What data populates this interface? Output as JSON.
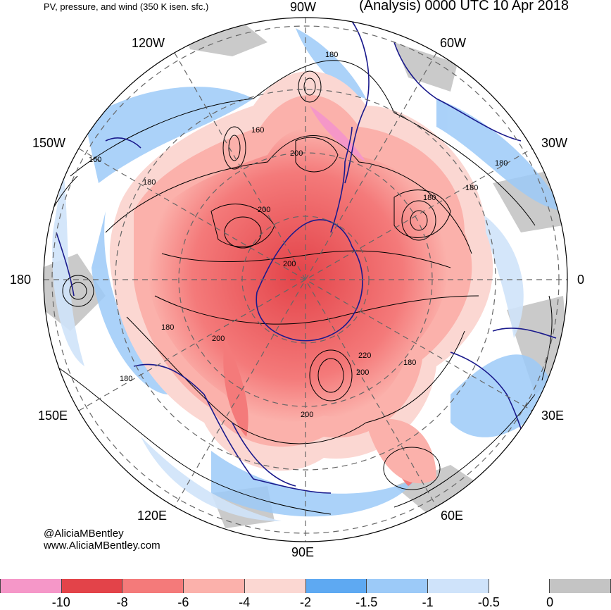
{
  "header": {
    "subtitle": "PV, pressure, and wind (350 K isen. sfc.)",
    "title": "(Analysis) 0000 UTC 10 Apr 2018"
  },
  "longitude_labels": {
    "n90w": "90W",
    "n120w": "120W",
    "n60w": "60W",
    "n150w": "150W",
    "n30w": "30W",
    "n180": "180",
    "n0": "0",
    "n150e": "150E",
    "n30e": "30E",
    "n120e": "120E",
    "n60e": "60E",
    "n90e": "90E"
  },
  "contour_labels": [
    "180",
    "160",
    "200",
    "160",
    "180",
    "180",
    "180",
    "180",
    "200",
    "200",
    "180",
    "200",
    "220",
    "200",
    "180",
    "180",
    "200"
  ],
  "credit": {
    "handle": "@AliciaMBentley",
    "site": "www.AliciaMBentley.com"
  },
  "colorbar": {
    "colors": [
      "#f597c8",
      "#e34349",
      "#f47a7a",
      "#fbb1ab",
      "#fbd7d2",
      "#5ea9f2",
      "#9ccaf8",
      "#cfe3fa",
      "#ffffff",
      "#c4c4c4"
    ],
    "ticks": [
      "-10",
      "-8",
      "-6",
      "-4",
      "-2",
      "-1.5",
      "-1",
      "-0.5",
      "0"
    ]
  }
}
